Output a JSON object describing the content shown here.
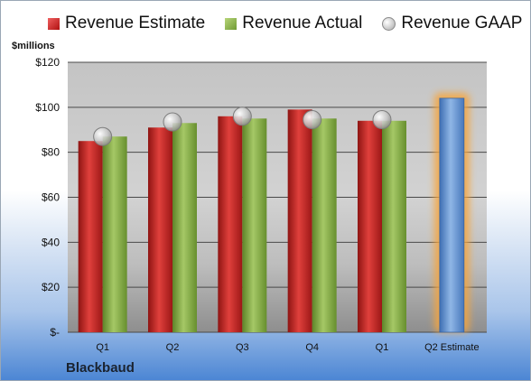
{
  "legend": {
    "estimate": "Revenue Estimate",
    "actual": "Revenue Actual",
    "gaap": "Revenue GAAP"
  },
  "unit_label": "$millions",
  "company": "Blackbaud",
  "colors": {
    "estimate": "#c8211f",
    "actual": "#8aad4a",
    "gaap": "#b5b5b5",
    "q2_estimate": "#6b9bd6",
    "highlight": "#f6a53c"
  },
  "chart_data": {
    "type": "bar",
    "categories": [
      "Q1",
      "Q2",
      "Q3",
      "Q4",
      "Q1",
      "Q2 Estimate"
    ],
    "series": [
      {
        "name": "Revenue Estimate",
        "values": [
          85,
          91,
          96,
          99,
          94,
          104
        ]
      },
      {
        "name": "Revenue Actual",
        "values": [
          87,
          93,
          95,
          95,
          94,
          null
        ]
      },
      {
        "name": "Revenue GAAP",
        "values": [
          87,
          93.5,
          96,
          94.5,
          94.5,
          null
        ]
      }
    ],
    "yticks": [
      0,
      20,
      40,
      60,
      80,
      100,
      120
    ],
    "ytick_labels": [
      "$-",
      "$20",
      "$40",
      "$60",
      "$80",
      "$100",
      "$120"
    ],
    "ylim": [
      0,
      120
    ],
    "grid": true,
    "legend_position": "top"
  }
}
